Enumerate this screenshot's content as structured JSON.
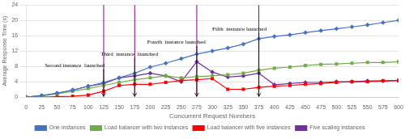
{
  "chart_data": {
    "type": "line",
    "xlabel": "Concurrent Request Numbers",
    "ylabel": "Average Response Time (s)",
    "x": [
      0,
      25,
      50,
      75,
      100,
      125,
      150,
      175,
      200,
      225,
      250,
      275,
      300,
      325,
      350,
      375,
      400,
      425,
      450,
      475,
      500,
      525,
      550,
      575,
      600
    ],
    "series": [
      {
        "name": "One instances",
        "color": "#4472C4",
        "marker": "diamond",
        "values": [
          0,
          0.4,
          1.0,
          1.8,
          2.8,
          3.8,
          5.0,
          6.2,
          7.8,
          8.8,
          10.0,
          11.2,
          12.0,
          12.8,
          13.8,
          15.2,
          15.8,
          16.2,
          16.8,
          17.3,
          17.8,
          18.3,
          18.8,
          19.4,
          20.0
        ]
      },
      {
        "name": "Load balancer with two instances",
        "color": "#70AD47",
        "marker": "square",
        "values": [
          0,
          0.3,
          0.8,
          1.5,
          2.2,
          3.0,
          3.8,
          4.5,
          5.0,
          5.5,
          5.0,
          5.3,
          5.5,
          5.8,
          6.2,
          7.0,
          7.5,
          7.8,
          8.2,
          8.5,
          8.6,
          8.8,
          9.0,
          9.0,
          9.2
        ]
      },
      {
        "name": "Load balancer with five instances",
        "color": "#FF0000",
        "marker": "square",
        "values": [
          0,
          0.0,
          0.1,
          0.2,
          0.5,
          1.5,
          3.0,
          3.3,
          3.3,
          3.8,
          4.3,
          4.5,
          4.8,
          2.0,
          2.0,
          2.5,
          2.8,
          3.0,
          3.3,
          3.5,
          3.8,
          4.0,
          4.0,
          4.2,
          4.3
        ]
      },
      {
        "name": "Five scaling instances",
        "color": "#7030A0",
        "marker": "diamond",
        "values": [
          0,
          0.3,
          1.0,
          1.8,
          2.8,
          3.5,
          5.0,
          5.5,
          6.2,
          5.5,
          4.0,
          9.2,
          6.5,
          5.2,
          5.5,
          6.2,
          3.2,
          3.5,
          3.8,
          3.8,
          4.0,
          4.0,
          4.2,
          4.2,
          4.3
        ]
      }
    ],
    "vlines": [
      125,
      175,
      275,
      375
    ],
    "vline_color": "#8B008B",
    "annotations": [
      {
        "text": "Second instance  launched",
        "x": 30,
        "y": 7.5,
        "arrow_x": 125
      },
      {
        "text": "Third  instance  launched",
        "x": 120,
        "y": 10.5,
        "arrow_x": 175
      },
      {
        "text": "Fourth  instance launched",
        "x": 195,
        "y": 13.5,
        "arrow_x": 275
      },
      {
        "text": "Fifth  instance launched",
        "x": 300,
        "y": 17.0,
        "arrow_x": 375
      }
    ],
    "xlim": [
      0,
      600
    ],
    "ylim": [
      0,
      24
    ],
    "xticks": [
      0,
      25,
      50,
      75,
      100,
      125,
      150,
      175,
      200,
      225,
      250,
      275,
      300,
      325,
      350,
      375,
      400,
      425,
      450,
      475,
      500,
      525,
      550,
      575,
      600
    ],
    "yticks": [
      0,
      4,
      8,
      12,
      16,
      20,
      24
    ],
    "grid": "y",
    "legend": "bottom"
  }
}
